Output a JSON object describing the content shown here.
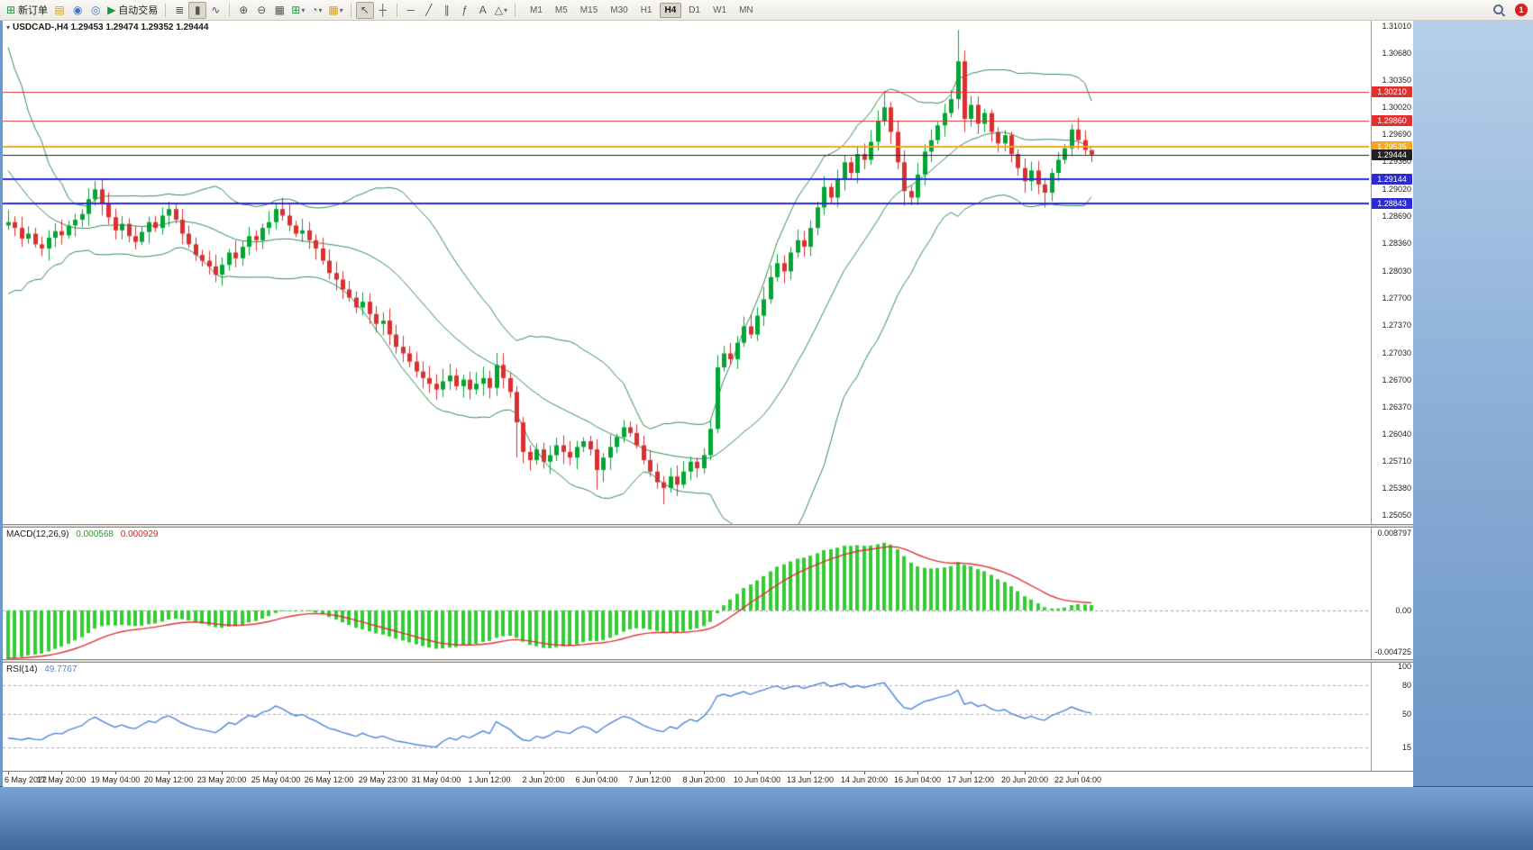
{
  "toolbar": {
    "new_order_label": "新订单",
    "auto_trading_label": "自动交易",
    "timeframes": [
      "M1",
      "M5",
      "M15",
      "M30",
      "H1",
      "H4",
      "D1",
      "W1",
      "MN"
    ],
    "active_timeframe": "H4",
    "notification_count": "1"
  },
  "icons": {
    "dropdown": "▾",
    "new_order": "⊞",
    "charts": "▤",
    "market_watch": "◉",
    "data_window": "◎",
    "auto_trading": "▶",
    "chart_bars": "≣",
    "chart_candles": "▮",
    "chart_line": "∿",
    "zoom_in": "⊕",
    "zoom_out": "⊖",
    "tile_windows": "▦",
    "new_chart": "⊞",
    "profiles": "◔",
    "cursor": "↖",
    "crosshair": "┼",
    "hline": "─",
    "trendline": "╱",
    "channel": "∥",
    "fibonacci": "ƒ",
    "text": "A",
    "shapes": "△"
  },
  "colors": {
    "bull": "#00A532",
    "bear": "#D93030",
    "bands": "#2E8B57",
    "macd_hist": "#33CC33",
    "macd_signal": "#E03131",
    "rsi_line": "#4A86D8",
    "level_red": "#E03131",
    "level_orange": "#F5A623",
    "level_blue": "#2B2BD4",
    "current_price": "#222222"
  },
  "chart": {
    "symbol_info": "USDCAD-,H4  1.29453 1.29474 1.29352 1.29444",
    "price_min": 1.2505,
    "price_max": 1.3101,
    "price_scale": [
      "1.31010",
      "1.30680",
      "1.30350",
      "1.30020",
      "1.29690",
      "1.29360",
      "1.29020",
      "1.28690",
      "1.28360",
      "1.28030",
      "1.27700",
      "1.27370",
      "1.27030",
      "1.26700",
      "1.26370",
      "1.26040",
      "1.25710",
      "1.25380",
      "1.25050"
    ],
    "levels": [
      {
        "name": "resistance-line-1",
        "price": 1.3021,
        "label": "1.30210",
        "color": "#E03131",
        "width": 1
      },
      {
        "name": "resistance-line-2",
        "price": 1.2986,
        "label": "1.29860",
        "color": "#E03131",
        "width": 1
      },
      {
        "name": "pivot-line",
        "price": 1.29535,
        "label": "1.29535",
        "color": "#F5A623",
        "width": 2
      },
      {
        "name": "current-price-line",
        "price": 1.29444,
        "label": "1.29444",
        "color": "#222222",
        "width": 1
      },
      {
        "name": "support-line-1",
        "price": 1.29144,
        "label": "1.29144",
        "color": "#2B2BD4",
        "width": 2
      },
      {
        "name": "support-line-2",
        "price": 1.28843,
        "label": "1.28843",
        "color": "#2B2BD4",
        "width": 2
      }
    ]
  },
  "macd": {
    "name": "MACD(12,26,9)",
    "main_value": "0.000568",
    "signal_value": "0.000929",
    "scale": [
      "0.008797",
      "0.00",
      "-0.004725"
    ],
    "range": [
      -0.004725,
      0.008797
    ]
  },
  "rsi": {
    "name": "RSI(14)",
    "value": "49.7767",
    "scale": [
      {
        "label": "100",
        "value": 100
      },
      {
        "label": "80",
        "value": 80
      },
      {
        "label": "50",
        "value": 50
      },
      {
        "label": "15",
        "value": 15
      }
    ],
    "levels": [
      80,
      50,
      15
    ]
  },
  "time_axis": [
    "6 May 2022",
    "17 May 20:00",
    "19 May 04:00",
    "20 May 12:00",
    "23 May 20:00",
    "25 May 04:00",
    "26 May 12:00",
    "29 May 23:00",
    "31 May 04:00",
    "1 Jun 12:00",
    "2 Jun 20:00",
    "6 Jun 04:00",
    "7 Jun 12:00",
    "8 Jun 20:00",
    "10 Jun 04:00",
    "13 Jun 12:00",
    "14 Jun 20:00",
    "16 Jun 04:00",
    "17 Jun 12:00",
    "20 Jun 20:00",
    "22 Jun 04:00"
  ],
  "chart_data": {
    "type": "candlestick",
    "symbol": "USDCAD",
    "timeframe": "H4",
    "indicators": [
      "Bollinger Bands(20,2)",
      "MACD(12,26,9)",
      "RSI(14)"
    ],
    "current_bar": {
      "open": 1.29453,
      "high": 1.29474,
      "low": 1.29352,
      "close": 1.29444
    },
    "bars_per_label": 8,
    "pre_closes": [
      1.3095,
      1.308,
      1.304,
      1.306,
      1.301,
      1.298,
      1.2995,
      1.295,
      1.292,
      1.2935,
      1.29,
      1.288,
      1.2895,
      1.2868,
      1.285,
      1.2862,
      1.2845,
      1.2858,
      1.285,
      1.2858
    ],
    "closes": [
      1.2862,
      1.2855,
      1.2842,
      1.2848,
      1.2835,
      1.283,
      1.2843,
      1.2851,
      1.2846,
      1.2858,
      1.2865,
      1.2872,
      1.289,
      1.2902,
      1.2885,
      1.2868,
      1.2852,
      1.286,
      1.2845,
      1.2838,
      1.285,
      1.2862,
      1.2855,
      1.287,
      1.2878,
      1.2865,
      1.2848,
      1.2835,
      1.2822,
      1.2815,
      1.2808,
      1.2798,
      1.281,
      1.2825,
      1.2818,
      1.2832,
      1.2845,
      1.284,
      1.2855,
      1.2862,
      1.2878,
      1.287,
      1.2858,
      1.2848,
      1.2852,
      1.284,
      1.283,
      1.2815,
      1.28,
      1.2792,
      1.278,
      1.277,
      1.2758,
      1.2765,
      1.275,
      1.2738,
      1.2742,
      1.2725,
      1.271,
      1.2702,
      1.2692,
      1.268,
      1.2672,
      1.2665,
      1.2658,
      1.2668,
      1.2675,
      1.2662,
      1.267,
      1.2658,
      1.2665,
      1.2672,
      1.266,
      1.2688,
      1.2672,
      1.2655,
      1.2618,
      1.2582,
      1.2572,
      1.2585,
      1.257,
      1.2578,
      1.259,
      1.2582,
      1.2575,
      1.2588,
      1.2595,
      1.2585,
      1.256,
      1.2575,
      1.2588,
      1.26,
      1.2612,
      1.2605,
      1.259,
      1.2572,
      1.2558,
      1.2545,
      1.2538,
      1.2552,
      1.2542,
      1.2558,
      1.257,
      1.2562,
      1.2578,
      1.261,
      1.2685,
      1.2702,
      1.2695,
      1.2715,
      1.2735,
      1.2725,
      1.2748,
      1.2768,
      1.2795,
      1.2812,
      1.2802,
      1.2825,
      1.284,
      1.2832,
      1.2855,
      1.288,
      1.2905,
      1.2892,
      1.2915,
      1.2935,
      1.2922,
      1.2945,
      1.2938,
      1.296,
      1.2985,
      1.3002,
      1.2972,
      1.2935,
      1.29,
      1.2892,
      1.292,
      1.2948,
      1.2962,
      1.298,
      1.2995,
      1.3012,
      1.3058,
      1.2988,
      1.3005,
      1.2982,
      1.2995,
      1.2972,
      1.2958,
      1.2968,
      1.2945,
      1.2928,
      1.2912,
      1.2925,
      1.2908,
      1.2898,
      1.2922,
      1.2938,
      1.2952,
      1.2975,
      1.2962,
      1.295,
      1.29444
    ],
    "wick_overrides": {
      "13": {
        "h": 1.2912
      },
      "31": {
        "l": 1.2789
      },
      "40": {
        "h": 1.2886
      },
      "76": {
        "l": 1.2575
      },
      "88": {
        "l": 1.2536
      },
      "98": {
        "l": 1.2518
      },
      "122": {
        "h": 1.2918
      },
      "131": {
        "h": 1.3022
      },
      "134": {
        "l": 1.2882
      },
      "142": {
        "h": 1.3096
      },
      "143": {
        "l": 1.2972
      },
      "155": {
        "l": 1.288
      },
      "162": {
        "h": 1.29474,
        "l": 1.29352
      }
    }
  }
}
